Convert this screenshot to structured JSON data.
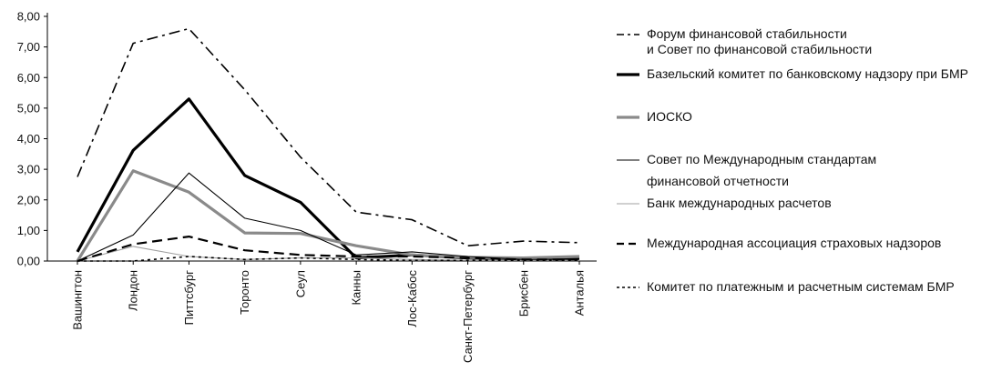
{
  "chart_data": {
    "type": "line",
    "title": "",
    "xlabel": "",
    "ylabel": "",
    "ylim": [
      0,
      8
    ],
    "yticks": [
      0,
      1,
      2,
      3,
      4,
      5,
      6,
      7,
      8
    ],
    "ytick_labels": [
      "0,00",
      "1,00",
      "2,00",
      "3,00",
      "4,00",
      "5,00",
      "6,00",
      "7,00",
      "8,00"
    ],
    "categories": [
      "Вашингтон",
      "Лондон",
      "Питтсбург",
      "Торонто",
      "Сеул",
      "Канны",
      "Лос-Кабос",
      "Санкт-Петербург",
      "Брисбен",
      "Анталья"
    ],
    "grid": false,
    "legend_position": "right",
    "series": [
      {
        "name": "Форум финансовой стабильности и Совет по финансовой стабильности",
        "name_lines": [
          "Форум финансовой стабильности",
          "и Совет по финансовой стабильности"
        ],
        "style": "dashdot",
        "color": "#000000",
        "width": 1.6,
        "values": [
          2.75,
          7.12,
          7.6,
          5.6,
          3.4,
          1.6,
          1.35,
          0.5,
          0.65,
          0.6
        ]
      },
      {
        "name": "Базельский комитет по банковскому надзору при БМР",
        "name_lines": [
          "Базельский комитет по банковскому надзору при БМР"
        ],
        "style": "solid",
        "color": "#000000",
        "width": 3.2,
        "values": [
          0.3,
          3.62,
          5.3,
          2.8,
          1.92,
          0.1,
          0.2,
          0.1,
          0.08,
          0.1
        ]
      },
      {
        "name": "ИОСКО",
        "name_lines": [
          "ИОСКО"
        ],
        "style": "solid",
        "color": "#8a8a8a",
        "width": 3.2,
        "values": [
          0.0,
          2.95,
          2.25,
          0.92,
          0.9,
          0.5,
          0.2,
          0.12,
          0.1,
          0.15
        ]
      },
      {
        "name": "Совет по Международным стандартам финансовой отчетности",
        "name_lines": [
          "Совет по Международным стандартам",
          "финансовой отчетности"
        ],
        "style": "solid",
        "color": "#000000",
        "width": 1.1,
        "values": [
          0.0,
          0.85,
          2.88,
          1.4,
          1.0,
          0.2,
          0.3,
          0.15,
          0.05,
          0.05
        ]
      },
      {
        "name": "Банк международных расчетов",
        "name_lines": [
          "Банк международных расчетов"
        ],
        "style": "solid",
        "color": "#a0a0a0",
        "width": 1.1,
        "values": [
          0.0,
          0.48,
          0.15,
          0.05,
          0.1,
          0.1,
          0.05,
          0.02,
          0.02,
          0.02
        ]
      },
      {
        "name": "Международная ассоциация страховых надзоров",
        "name_lines": [
          "Международная ассоциация страховых надзоров"
        ],
        "style": "dashed",
        "color": "#000000",
        "width": 2.2,
        "values": [
          0.0,
          0.55,
          0.8,
          0.35,
          0.2,
          0.15,
          0.15,
          0.1,
          0.05,
          0.05
        ]
      },
      {
        "name": "Комитет по платежным и расчетным системам БМР",
        "name_lines": [
          "Комитет по платежным и расчетным системам БМР"
        ],
        "style": "dotted",
        "color": "#000000",
        "width": 1.6,
        "values": [
          0.0,
          0.0,
          0.15,
          0.05,
          0.1,
          0.05,
          0.02,
          0.02,
          0.02,
          0.02
        ]
      }
    ]
  }
}
